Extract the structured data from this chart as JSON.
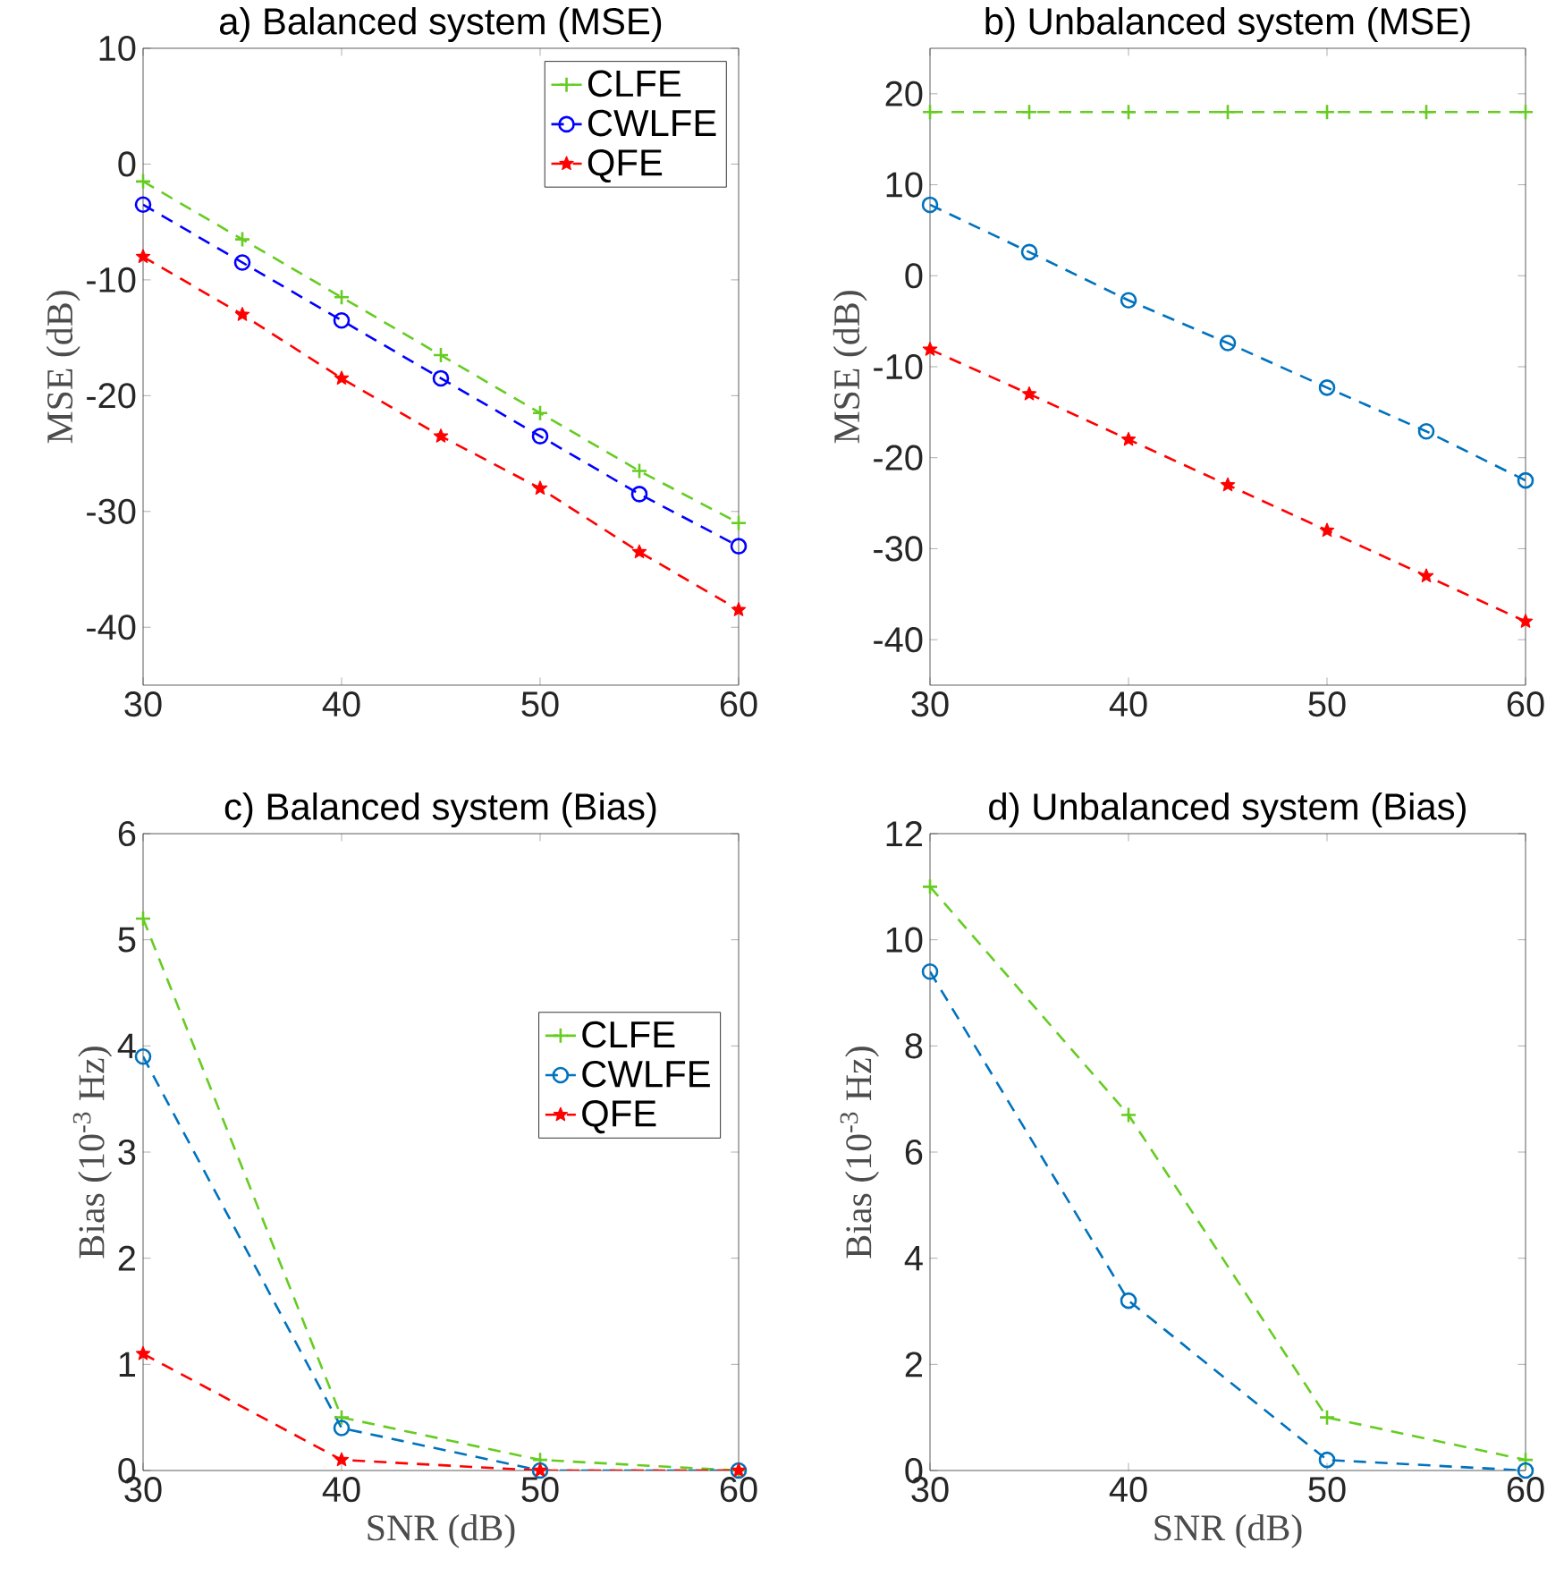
{
  "chart_data": [
    {
      "type": "line",
      "title": "a) Balanced system (MSE)",
      "ylabel": "MSE (dB)",
      "x": [
        30,
        35,
        40,
        45,
        50,
        55,
        60
      ],
      "xlim": [
        30,
        60
      ],
      "xticks": [
        30,
        40,
        50,
        60
      ],
      "ylim": [
        -45,
        10
      ],
      "yticks": [
        -40,
        -30,
        -20,
        -10,
        0,
        10
      ],
      "grid": false,
      "legend": "top right",
      "line_style": "dashed",
      "series": [
        {
          "name": "CLFE",
          "color": "#66cc22",
          "marker": "cross",
          "values": [
            -1.5,
            -6.5,
            -11.5,
            -16.5,
            -21.5,
            -26.5,
            -31
          ]
        },
        {
          "name": "CWLFE",
          "color": "#0000ff",
          "marker": "circle",
          "values": [
            -3.5,
            -8.5,
            -13.5,
            -18.5,
            -23.5,
            -28.5,
            -33
          ]
        },
        {
          "name": "QFE",
          "color": "#ff0000",
          "marker": "star",
          "values": [
            -8,
            -13,
            -18.5,
            -23.5,
            -28,
            -33.5,
            -38.5
          ]
        }
      ]
    },
    {
      "type": "line",
      "title": "b) Unbalanced system (MSE)",
      "ylabel": "MSE (dB)",
      "x": [
        30,
        35,
        40,
        45,
        50,
        55,
        60
      ],
      "xlim": [
        30,
        60
      ],
      "xticks": [
        30,
        40,
        50,
        60
      ],
      "ylim": [
        -45,
        25
      ],
      "yticks": [
        -40,
        -30,
        -20,
        -10,
        0,
        10,
        20
      ],
      "grid": false,
      "legend": false,
      "line_style": "dashed",
      "series": [
        {
          "color": "#66cc22",
          "marker": "cross",
          "values": [
            18,
            18,
            18,
            18,
            18,
            18,
            18
          ]
        },
        {
          "color": "#0072bd",
          "marker": "circle",
          "values": [
            7.8,
            2.6,
            -2.7,
            -7.4,
            -12.3,
            -17.1,
            -22.5
          ]
        },
        {
          "color": "#ff0000",
          "marker": "star",
          "values": [
            -8.1,
            -13,
            -18,
            -23,
            -28,
            -33,
            -38
          ]
        }
      ]
    },
    {
      "type": "line",
      "title": "c) Balanced system (Bias)",
      "xlabel": "SNR (dB)",
      "ylabel": "Bias (10$^{-3}$ Hz)",
      "x": [
        30,
        40,
        50,
        60
      ],
      "xlim": [
        30,
        60
      ],
      "xticks": [
        30,
        40,
        50,
        60
      ],
      "ylim": [
        0,
        6
      ],
      "yticks": [
        0,
        1,
        2,
        3,
        4,
        5,
        6
      ],
      "grid": false,
      "legend": "right",
      "line_style": "dashed",
      "series": [
        {
          "name": "CLFE",
          "color": "#66cc22",
          "marker": "cross",
          "values": [
            5.2,
            0.5,
            0.1,
            0
          ]
        },
        {
          "name": "CWLFE",
          "color": "#0072bd",
          "marker": "circle",
          "values": [
            3.9,
            0.4,
            0,
            0
          ]
        },
        {
          "name": "QFE",
          "color": "#ff0000",
          "marker": "star",
          "values": [
            1.1,
            0.1,
            0,
            0
          ]
        }
      ]
    },
    {
      "type": "line",
      "title": "d) Unbalanced system (Bias)",
      "xlabel": "SNR (dB)",
      "ylabel": "Bias (10$^{-3}$ Hz)",
      "x": [
        30,
        40,
        50,
        60
      ],
      "xlim": [
        30,
        60
      ],
      "xticks": [
        30,
        40,
        50,
        60
      ],
      "ylim": [
        0,
        12
      ],
      "yticks": [
        0,
        2,
        4,
        6,
        8,
        10,
        12
      ],
      "grid": false,
      "legend": false,
      "line_style": "dashed",
      "series": [
        {
          "color": "#66cc22",
          "marker": "cross",
          "values": [
            11,
            6.7,
            1,
            0.2
          ]
        },
        {
          "color": "#0072bd",
          "marker": "circle",
          "values": [
            9.4,
            3.2,
            0.2,
            0
          ]
        }
      ]
    }
  ]
}
